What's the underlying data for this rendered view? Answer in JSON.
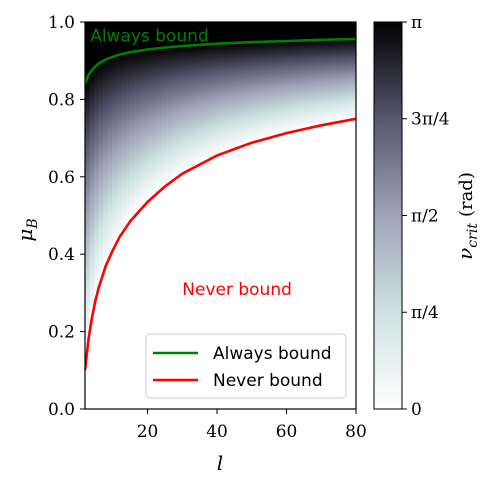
{
  "chart_data": {
    "type": "heatmap",
    "title": "",
    "xlabel": "l",
    "ylabel": "μ_B",
    "xlim": [
      2,
      80
    ],
    "ylim": [
      0.0,
      1.0
    ],
    "x_ticks": [
      20,
      40,
      60,
      80
    ],
    "x_tick_labels": [
      "20",
      "40",
      "60",
      "80"
    ],
    "y_ticks": [
      0.0,
      0.2,
      0.4,
      0.6,
      0.8,
      1.0
    ],
    "y_tick_labels": [
      "0.0",
      "0.2",
      "0.4",
      "0.6",
      "0.8",
      "1.0"
    ],
    "colorbar": {
      "label": "ν_crit (rad)",
      "label_main": "ν",
      "label_sub": "crit",
      "label_unit": "(rad)",
      "range": [
        0,
        3.14159
      ],
      "colormap": "bone_r",
      "ticks": [
        0,
        0.7854,
        1.5708,
        2.3562,
        3.14159
      ],
      "tick_labels": [
        "0",
        "π/4",
        "π/2",
        "3π/4",
        "π"
      ]
    },
    "series": [
      {
        "name": "Always bound",
        "color": "#008000",
        "x": [
          2,
          3,
          4,
          5,
          6,
          8,
          10,
          12,
          15,
          20,
          25,
          30,
          40,
          50,
          60,
          70,
          80
        ],
        "y": [
          0.84,
          0.863,
          0.876,
          0.885,
          0.893,
          0.903,
          0.91,
          0.916,
          0.922,
          0.929,
          0.934,
          0.938,
          0.944,
          0.948,
          0.951,
          0.954,
          0.956
        ]
      },
      {
        "name": "Never bound",
        "color": "#ff0000",
        "x": [
          2,
          3,
          4,
          5,
          6,
          8,
          10,
          12,
          15,
          20,
          25,
          30,
          40,
          50,
          60,
          70,
          80
        ],
        "y": [
          0.1,
          0.18,
          0.235,
          0.28,
          0.315,
          0.37,
          0.41,
          0.445,
          0.485,
          0.535,
          0.575,
          0.608,
          0.655,
          0.688,
          0.713,
          0.733,
          0.75
        ]
      }
    ],
    "annotations": [
      {
        "text": "Always bound",
        "color": "#008000",
        "x": 3.5,
        "y": 0.965
      },
      {
        "text": "Never bound",
        "color": "#ff0000",
        "x": 30,
        "y": 0.31
      }
    ],
    "legend": {
      "position": "lower-right",
      "entries": [
        "Always bound",
        "Never bound"
      ]
    }
  }
}
